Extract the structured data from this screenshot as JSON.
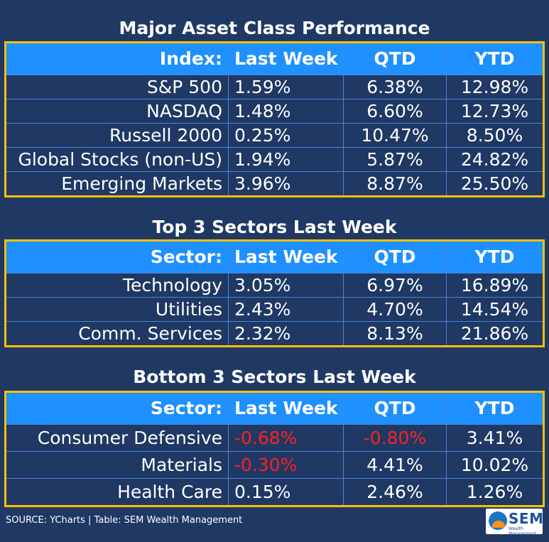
{
  "tables": [
    {
      "title": "Major Asset Class Performance",
      "headers": [
        "Index:",
        "Last Week",
        "QTD",
        "YTD"
      ],
      "rows": [
        [
          "S&P 500",
          "1.59%",
          "6.38%",
          "12.98%"
        ],
        [
          "NASDAQ",
          "1.48%",
          "6.60%",
          "12.73%"
        ],
        [
          "Russell 2000",
          "0.25%",
          "10.47%",
          "8.50%"
        ],
        [
          "Global Stocks (non-US)",
          "1.94%",
          "5.87%",
          "24.82%"
        ],
        [
          "Emerging Markets",
          "3.96%",
          "8.87%",
          "25.50%"
        ]
      ]
    },
    {
      "title": "Top 3 Sectors Last Week",
      "headers": [
        "Sector:",
        "Last Week",
        "QTD",
        "YTD"
      ],
      "rows": [
        [
          "Technology",
          "3.05%",
          "6.97%",
          "16.89%"
        ],
        [
          "Utilities",
          "2.43%",
          "4.70%",
          "14.54%"
        ],
        [
          "Comm. Services",
          "2.32%",
          "8.13%",
          "21.86%"
        ]
      ]
    },
    {
      "title": "Bottom 3 Sectors Last Week",
      "headers": [
        "Sector:",
        "Last Week",
        "QTD",
        "YTD"
      ],
      "rows": [
        [
          "Consumer Defensive",
          "-0.68%",
          "-0.80%",
          "3.41%"
        ],
        [
          "Materials",
          "-0.30%",
          "4.41%",
          "10.02%"
        ],
        [
          "Health Care",
          "0.15%",
          "2.46%",
          "1.26%"
        ]
      ]
    }
  ],
  "colors": {
    "background": "#1f3864",
    "header": "#1e90ff",
    "border": "#ffc000",
    "negative": "#ff2020"
  },
  "footer": {
    "source": "SOURCE: YCharts | Table: SEM Wealth Management"
  },
  "logo": {
    "text": "SEM",
    "tagline": "Wealth Management"
  },
  "chart_data": [
    {
      "type": "table",
      "title": "Major Asset Class Performance",
      "columns": [
        "Index:",
        "Last Week",
        "QTD",
        "YTD"
      ],
      "rows": [
        [
          "S&P 500",
          1.59,
          6.38,
          12.98
        ],
        [
          "NASDAQ",
          1.48,
          6.6,
          12.73
        ],
        [
          "Russell 2000",
          0.25,
          10.47,
          8.5
        ],
        [
          "Global Stocks (non-US)",
          1.94,
          5.87,
          24.82
        ],
        [
          "Emerging Markets",
          3.96,
          8.87,
          25.5
        ]
      ]
    },
    {
      "type": "table",
      "title": "Top 3 Sectors Last Week",
      "columns": [
        "Sector:",
        "Last Week",
        "QTD",
        "YTD"
      ],
      "rows": [
        [
          "Technology",
          3.05,
          6.97,
          16.89
        ],
        [
          "Utilities",
          2.43,
          4.7,
          14.54
        ],
        [
          "Comm. Services",
          2.32,
          8.13,
          21.86
        ]
      ]
    },
    {
      "type": "table",
      "title": "Bottom 3 Sectors Last Week",
      "columns": [
        "Sector:",
        "Last Week",
        "QTD",
        "YTD"
      ],
      "rows": [
        [
          "Consumer Defensive",
          -0.68,
          -0.8,
          3.41
        ],
        [
          "Materials",
          -0.3,
          4.41,
          10.02
        ],
        [
          "Health Care",
          0.15,
          2.46,
          1.26
        ]
      ]
    }
  ]
}
